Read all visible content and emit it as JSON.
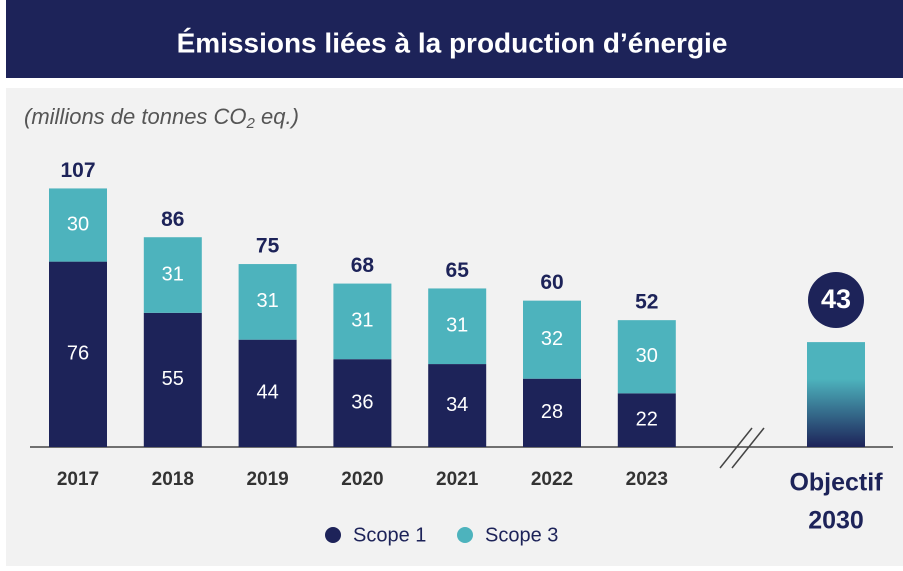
{
  "chart_data": {
    "type": "stacked_bar",
    "title": "Émissions liées à la production d’énergie",
    "subtitle": [
      "(millions de tonnes CO",
      "2",
      " eq.)"
    ],
    "categories": [
      "2017",
      "2018",
      "2019",
      "2020",
      "2021",
      "2022",
      "2023"
    ],
    "series": [
      {
        "name": "Scope 1",
        "color": "#1d2359",
        "values": [
          76,
          55,
          44,
          36,
          34,
          28,
          22
        ]
      },
      {
        "name": "Scope 3",
        "color": "#4db3bd",
        "values": [
          30,
          31,
          31,
          31,
          31,
          32,
          30
        ]
      }
    ],
    "totals": [
      107,
      86,
      75,
      68,
      65,
      60,
      52
    ],
    "target": {
      "label": [
        "Objectif",
        "2030"
      ],
      "value": 43,
      "colors": [
        "#4db3bd",
        "#1d2359"
      ]
    },
    "legend": "bottom"
  }
}
